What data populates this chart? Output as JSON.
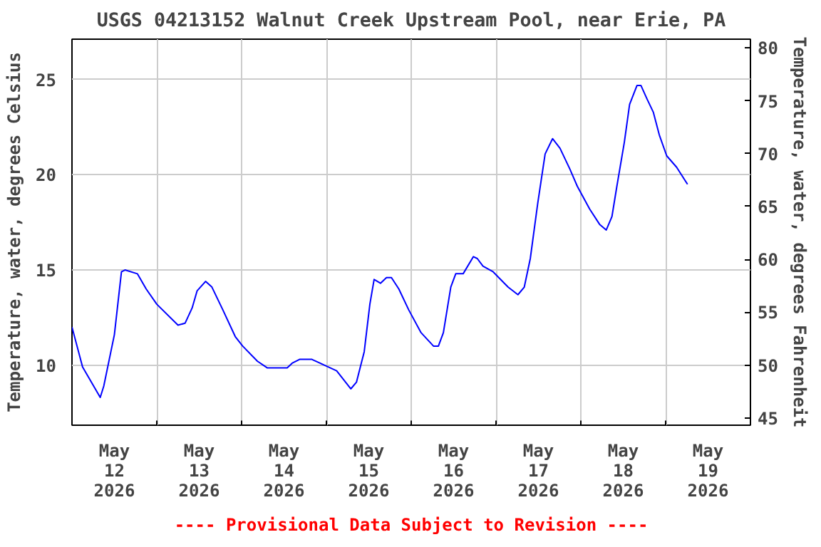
{
  "chart_data": {
    "type": "line",
    "title": "USGS 04213152 Walnut Creek Upstream Pool, near Erie, PA",
    "ylabel": "Temperature, water, degrees Celsius",
    "y2label": "Temperature, water, degrees Fahrenheit",
    "annotations": [
      "---- Provisional Data Subject to Revision ----"
    ],
    "x": [
      "2026-05-12T00:00",
      "2026-05-12T03:00",
      "2026-05-12T08:00",
      "2026-05-12T09:00",
      "2026-05-12T12:00",
      "2026-05-12T14:00",
      "2026-05-12T15:00",
      "2026-05-12T18:30",
      "2026-05-12T21:00",
      "2026-05-13T00:00",
      "2026-05-13T06:00",
      "2026-05-13T08:00",
      "2026-05-13T10:00",
      "2026-05-13T11:24",
      "2026-05-13T13:48",
      "2026-05-13T15:36",
      "2026-05-13T18:42",
      "2026-05-13T22:12",
      "2026-05-14T00:18",
      "2026-05-14T04:30",
      "2026-05-14T07:18",
      "2026-05-14T12:54",
      "2026-05-14T14:18",
      "2026-05-14T16:24",
      "2026-05-14T19:54",
      "2026-05-14T23:24",
      "2026-05-15T02:54",
      "2026-05-15T06:54",
      "2026-05-15T08:30",
      "2026-05-15T10:42",
      "2026-05-15T12:18",
      "2026-05-15T13:30",
      "2026-05-15T15:18",
      "2026-05-15T17:00",
      "2026-05-15T18:24",
      "2026-05-15T20:30",
      "2026-05-15T23:18",
      "2026-05-16T02:48",
      "2026-05-16T06:18",
      "2026-05-16T07:42",
      "2026-05-16T09:06",
      "2026-05-16T11:12",
      "2026-05-16T12:36",
      "2026-05-16T14:42",
      "2026-05-16T17:36",
      "2026-05-16T18:42",
      "2026-05-16T20:18",
      "2026-05-16T23:12",
      "2026-05-17T03:24",
      "2026-05-17T06:12",
      "2026-05-17T08:00",
      "2026-05-17T09:42",
      "2026-05-17T11:48",
      "2026-05-17T13:54",
      "2026-05-17T16:00",
      "2026-05-17T18:06",
      "2026-05-17T20:54",
      "2026-05-17T23:00",
      "2026-05-18T02:30",
      "2026-05-18T05:18",
      "2026-05-18T07:12",
      "2026-05-18T08:48",
      "2026-05-18T10:12",
      "2026-05-18T12:18",
      "2026-05-18T13:48",
      "2026-05-18T15:54",
      "2026-05-18T17:00",
      "2026-05-18T18:42",
      "2026-05-18T20:30",
      "2026-05-18T22:12",
      "2026-05-19T00:18",
      "2026-05-19T03:06",
      "2026-05-19T06:12"
    ],
    "series": [
      {
        "color": "#0000ff",
        "values": [
          12.0,
          9.9,
          8.3,
          8.9,
          11.6,
          14.9,
          15.0,
          14.8,
          14.0,
          13.2,
          12.1,
          12.2,
          13.0,
          13.9,
          14.4,
          14.1,
          12.9,
          11.5,
          11.0,
          10.2,
          9.85,
          9.85,
          10.1,
          10.3,
          10.3,
          10.0,
          9.7,
          8.75,
          9.1,
          10.7,
          13.2,
          14.5,
          14.3,
          14.6,
          14.6,
          14.0,
          12.9,
          11.7,
          11.0,
          11.0,
          11.7,
          14.1,
          14.8,
          14.8,
          15.7,
          15.6,
          15.2,
          14.9,
          14.1,
          13.7,
          14.1,
          15.6,
          18.5,
          21.1,
          21.9,
          21.4,
          20.3,
          19.4,
          18.2,
          17.4,
          17.1,
          17.8,
          19.4,
          21.7,
          23.7,
          24.7,
          24.7,
          24.0,
          23.3,
          22.1,
          21.0,
          20.4,
          19.5
        ]
      }
    ],
    "xlim": [
      "2026-05-12T00:00",
      "2026-05-20T00:00"
    ],
    "xticks": [
      {
        "value": "2026-05-12T12:00",
        "label": "May\n12\n2026"
      },
      {
        "value": "2026-05-13T12:00",
        "label": "May\n13\n2026"
      },
      {
        "value": "2026-05-14T12:00",
        "label": "May\n14\n2026"
      },
      {
        "value": "2026-05-15T12:00",
        "label": "May\n15\n2026"
      },
      {
        "value": "2026-05-16T12:00",
        "label": "May\n16\n2026"
      },
      {
        "value": "2026-05-17T12:00",
        "label": "May\n17\n2026"
      },
      {
        "value": "2026-05-18T12:00",
        "label": "May\n18\n2026"
      },
      {
        "value": "2026-05-19T12:00",
        "label": "May\n19\n2026"
      },
      {
        "value": "2026-05-13T00:00",
        "label": null
      },
      {
        "value": "2026-05-14T00:00",
        "label": null
      },
      {
        "value": "2026-05-15T00:00",
        "label": null
      },
      {
        "value": "2026-05-16T00:00",
        "label": null
      },
      {
        "value": "2026-05-17T00:00",
        "label": null
      },
      {
        "value": "2026-05-18T00:00",
        "label": null
      },
      {
        "value": "2026-05-19T00:00",
        "label": null
      }
    ],
    "ylim": [
      6.84,
      27.13
    ],
    "yticks": [
      10,
      15,
      20,
      25
    ],
    "y2lim": [
      44.31,
      80.83
    ],
    "y2ticks": [
      45,
      50,
      55,
      60,
      65,
      70,
      75,
      80
    ],
    "grid": true,
    "line_style": "solid"
  }
}
